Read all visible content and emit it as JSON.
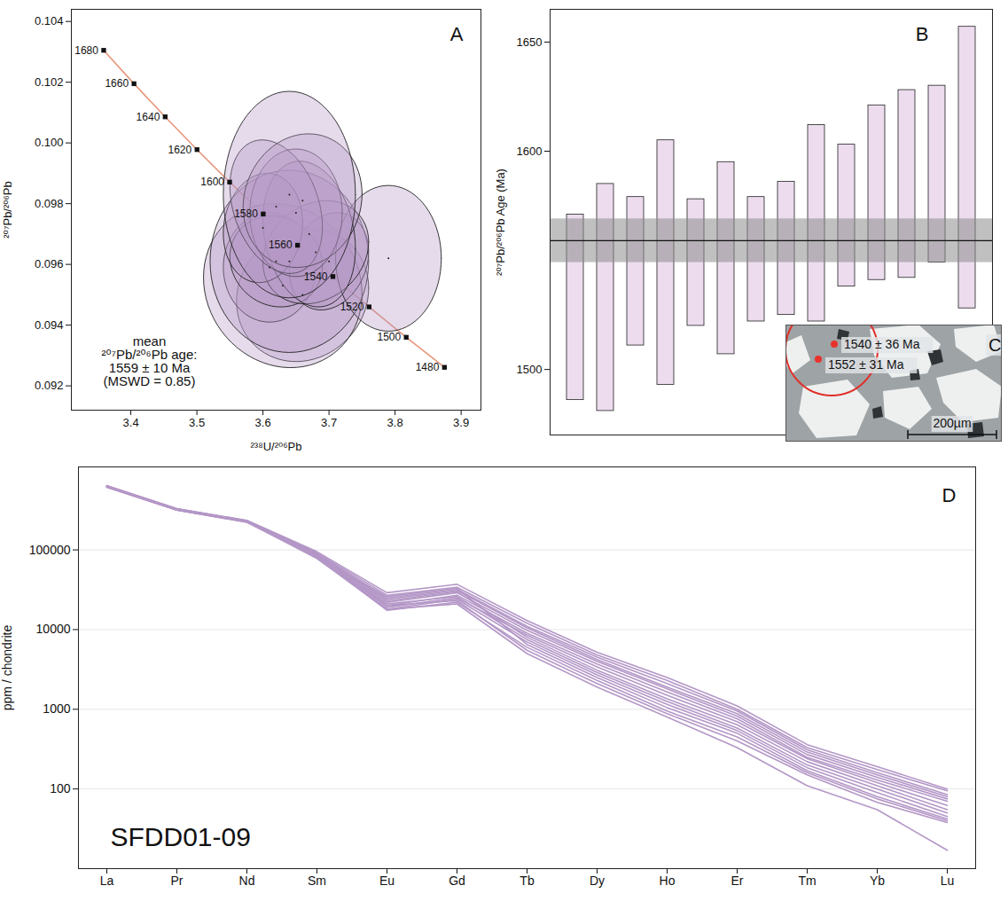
{
  "chart_data": [
    {
      "type": "concordia",
      "panel_label": "A",
      "x_label": "²³⁸U/²⁰⁶Pb",
      "y_label": "²⁰⁷Pb/²⁰⁶Pb",
      "xlim": [
        3.31,
        3.93
      ],
      "xticks": [
        3.4,
        3.5,
        3.6,
        3.7,
        3.8,
        3.9
      ],
      "ylim": [
        0.0912,
        0.1044
      ],
      "yticks": [
        0.092,
        0.094,
        0.096,
        0.098,
        {
          "value": 0.1,
          "label": "0.100"
        },
        0.102,
        0.104
      ],
      "concordia": {
        "color": "#e8967a",
        "ages": [
          1680,
          1660,
          1640,
          1620,
          1600,
          1580,
          1560,
          1540,
          1520,
          1500,
          1480
        ],
        "x": [
          3.3589,
          3.4048,
          3.452,
          3.5002,
          3.5496,
          3.6004,
          3.6524,
          3.7059,
          3.7607,
          3.8169,
          3.8748
        ],
        "y": [
          0.10305,
          0.10195,
          0.10086,
          0.09978,
          0.09871,
          0.09766,
          0.09663,
          0.0956,
          0.0946,
          0.0936,
          0.09261
        ]
      },
      "ellipses": {
        "color": "#b497c7",
        "x": [
          3.66,
          3.63,
          3.61,
          3.64,
          3.7,
          3.79,
          3.62,
          3.68,
          3.67,
          3.6,
          3.65,
          3.62,
          3.66,
          3.64
        ],
        "x_err": [
          0.1,
          0.12,
          0.07,
          0.12,
          0.06,
          0.08,
          0.07,
          0.08,
          0.07,
          0.06,
          0.07,
          0.07,
          0.09,
          0.1
        ],
        "y": [
          0.095,
          0.0953,
          0.0959,
          0.0961,
          0.0961,
          0.0962,
          0.0961,
          0.0964,
          0.097,
          0.0972,
          0.0977,
          0.0979,
          0.0981,
          0.0983
        ],
        "y_err": [
          0.0022,
          0.0027,
          0.0018,
          0.003,
          0.0016,
          0.0024,
          0.0015,
          0.0017,
          0.0024,
          0.0018,
          0.0021,
          0.0022,
          0.0022,
          0.0034
        ],
        "rho": [
          0.1,
          -0.1,
          0.0,
          0.0,
          0.2,
          0.0,
          -0.1,
          0.2,
          -0.2,
          0.1,
          0.0,
          -0.3,
          0.1,
          0.0
        ]
      },
      "annotation": [
        "mean",
        "²⁰⁷Pb/²⁰⁶Pb age:",
        "1559 ± 10 Ma",
        "(MSWD = 0.85)"
      ]
    },
    {
      "type": "bar",
      "panel_label": "B",
      "y_label": "²⁰⁷Pb/²⁰⁶Pb Age (Ma)",
      "tick_labels": "y",
      "ylim": [
        1470,
        1665
      ],
      "yticks": [
        1500,
        1600,
        1650
      ],
      "color": "#ecdcee",
      "low": [
        1486,
        1481,
        1511,
        1493,
        1520,
        1507,
        1522,
        1525,
        1522,
        1538,
        1541,
        1542,
        1549,
        1528
      ],
      "high": [
        1571,
        1585,
        1579,
        1605,
        1578,
        1595,
        1579,
        1586,
        1612,
        1603,
        1621,
        1628,
        1630,
        1657
      ],
      "mean": 1559,
      "mean_error": 10
    },
    {
      "type": "image",
      "panel_label": "C",
      "labels": [
        "1540 ± 36 Ma",
        "1552 ± 31 Ma"
      ],
      "scale_bar": "200µm"
    },
    {
      "type": "line",
      "panel_label": "D",
      "title": "SFDD01-09",
      "y_label": "ppm / chondrite",
      "log": "y",
      "grid": true,
      "color": "#b497c7",
      "categories": [
        "La",
        "Pr",
        "Nd",
        "Sm",
        "Eu",
        "Gd",
        "Tb",
        "Dy",
        "Ho",
        "Er",
        "Tm",
        "Yb",
        "Lu"
      ],
      "ylim": [
        10,
        1100000
      ],
      "yticks": [
        100,
        1000,
        10000,
        100000
      ],
      "series": [
        {
          "values": [
            640000,
            330000,
            235000,
            95000,
            29000,
            37000,
            13000,
            5200,
            2500,
            1100,
            360,
            190,
            100
          ]
        },
        {
          "values": [
            630000,
            325000,
            232000,
            92000,
            27000,
            34000,
            12000,
            4800,
            2300,
            1000,
            330,
            175,
            95
          ]
        },
        {
          "values": [
            635000,
            328000,
            230000,
            90000,
            25000,
            32000,
            11000,
            4500,
            2100,
            950,
            310,
            160,
            85
          ]
        },
        {
          "values": [
            625000,
            322000,
            228000,
            88000,
            24000,
            31000,
            10500,
            4200,
            1900,
            880,
            290,
            150,
            80
          ]
        },
        {
          "values": [
            620000,
            320000,
            226000,
            86000,
            22000,
            29000,
            9800,
            4000,
            1800,
            820,
            270,
            140,
            75
          ]
        },
        {
          "values": [
            630000,
            326000,
            231000,
            89000,
            20000,
            27000,
            9000,
            3700,
            1650,
            760,
            250,
            130,
            70
          ]
        },
        {
          "values": [
            615000,
            318000,
            225000,
            85000,
            19000,
            25000,
            8500,
            3400,
            1500,
            700,
            240,
            120,
            62
          ]
        },
        {
          "values": [
            628000,
            324000,
            229000,
            87000,
            23000,
            30000,
            8000,
            3100,
            1350,
            640,
            220,
            110,
            55
          ]
        },
        {
          "values": [
            622000,
            320000,
            227000,
            84000,
            21000,
            26000,
            7500,
            2900,
            1250,
            580,
            200,
            100,
            50
          ]
        },
        {
          "values": [
            618000,
            316000,
            224000,
            83000,
            18000,
            24000,
            7000,
            2700,
            1150,
            540,
            185,
            90,
            45
          ]
        },
        {
          "values": [
            626000,
            322000,
            228000,
            82000,
            26000,
            33000,
            6500,
            2500,
            1050,
            500,
            170,
            80,
            42
          ]
        },
        {
          "values": [
            632000,
            327000,
            230000,
            80000,
            17500,
            22000,
            6000,
            2300,
            950,
            450,
            160,
            75,
            40
          ]
        },
        {
          "values": [
            612000,
            315000,
            222000,
            80000,
            20000,
            23000,
            5500,
            2100,
            880,
            400,
            150,
            68,
            38
          ]
        },
        {
          "values": [
            620000,
            318000,
            225000,
            78000,
            18000,
            21000,
            5000,
            1900,
            800,
            330,
            110,
            55,
            17
          ]
        }
      ]
    }
  ]
}
